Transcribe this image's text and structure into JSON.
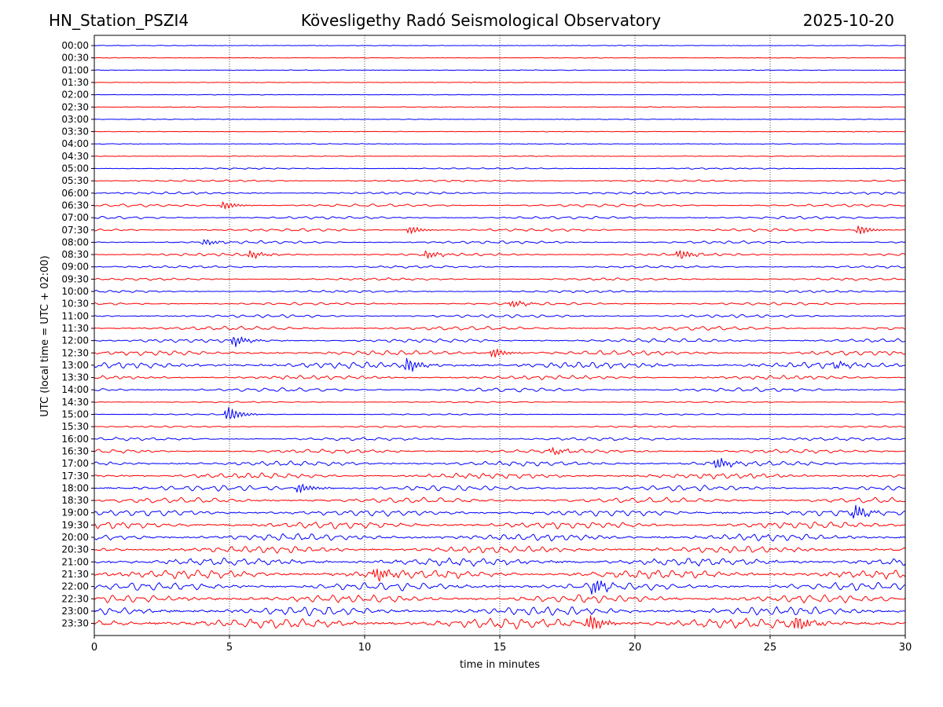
{
  "header": {
    "station": "HN_Station_PSZI4",
    "observatory": "Kövesligethy Radó Seismological Observatory",
    "date": "2025-10-20"
  },
  "chart_data": {
    "type": "line",
    "title": "Kövesligethy Radó Seismological Observatory",
    "xlabel": "time in minutes",
    "ylabel": "UTC (local time = UTC + 02:00)",
    "xlim": [
      0,
      30
    ],
    "x_ticks": [
      "0",
      "5",
      "10",
      "15",
      "20",
      "25",
      "30"
    ],
    "x_tick_values": [
      0,
      5,
      10,
      15,
      20,
      25,
      30
    ],
    "vertical_gridlines": [
      5,
      10,
      15,
      20,
      25
    ],
    "series_colors": [
      "#0000ff",
      "#ff0000"
    ],
    "row_labels": [
      "00:00",
      "00:30",
      "01:00",
      "01:30",
      "02:00",
      "02:30",
      "03:00",
      "03:30",
      "04:00",
      "04:30",
      "05:00",
      "05:30",
      "06:00",
      "06:30",
      "07:00",
      "07:30",
      "08:00",
      "08:30",
      "09:00",
      "09:30",
      "10:00",
      "10:30",
      "11:00",
      "11:30",
      "12:00",
      "12:30",
      "13:00",
      "13:30",
      "14:00",
      "14:30",
      "15:00",
      "15:30",
      "16:00",
      "16:30",
      "17:00",
      "17:30",
      "18:00",
      "18:30",
      "19:00",
      "19:30",
      "20:00",
      "20:30",
      "21:00",
      "21:30",
      "22:00",
      "22:30",
      "23:00",
      "23:30"
    ],
    "row_amplitude": [
      0.3,
      0.3,
      0.3,
      0.3,
      0.3,
      0.3,
      0.3,
      0.3,
      0.4,
      0.4,
      0.9,
      1.2,
      1.5,
      1.8,
      1.8,
      1.8,
      1.8,
      1.8,
      1.5,
      1.5,
      1.5,
      1.7,
      2.0,
      2.5,
      2.5,
      3.0,
      4.0,
      2.5,
      2.5,
      0.8,
      0.8,
      1.0,
      2.0,
      2.5,
      3.0,
      3.5,
      3.5,
      3.5,
      4.0,
      4.5,
      4.5,
      4.5,
      5.0,
      5.5,
      5.0,
      5.0,
      5.5,
      6.5
    ],
    "events": [
      {
        "row": "06:30",
        "minute": 4.8,
        "amplitude": 5
      },
      {
        "row": "07:30",
        "minute": 11.7,
        "amplitude": 5
      },
      {
        "row": "07:30",
        "minute": 28.3,
        "amplitude": 6
      },
      {
        "row": "08:00",
        "minute": 4.1,
        "amplitude": 4
      },
      {
        "row": "08:30",
        "minute": 5.8,
        "amplitude": 5
      },
      {
        "row": "08:30",
        "minute": 12.3,
        "amplitude": 5
      },
      {
        "row": "08:30",
        "minute": 21.7,
        "amplitude": 6
      },
      {
        "row": "10:30",
        "minute": 15.5,
        "amplitude": 4
      },
      {
        "row": "12:00",
        "minute": 5.2,
        "amplitude": 7
      },
      {
        "row": "12:30",
        "minute": 14.8,
        "amplitude": 6
      },
      {
        "row": "13:00",
        "minute": 11.6,
        "amplitude": 9
      },
      {
        "row": "13:00",
        "minute": 27.5,
        "amplitude": 4
      },
      {
        "row": "15:00",
        "minute": 5.0,
        "amplitude": 9
      },
      {
        "row": "16:30",
        "minute": 17.0,
        "amplitude": 4
      },
      {
        "row": "17:00",
        "minute": 23.1,
        "amplitude": 7
      },
      {
        "row": "18:00",
        "minute": 7.6,
        "amplitude": 6
      },
      {
        "row": "19:00",
        "minute": 28.2,
        "amplitude": 8
      },
      {
        "row": "21:30",
        "minute": 10.5,
        "amplitude": 8
      },
      {
        "row": "22:00",
        "minute": 18.5,
        "amplitude": 9
      },
      {
        "row": "23:30",
        "minute": 18.4,
        "amplitude": 10
      },
      {
        "row": "23:30",
        "minute": 26.0,
        "amplitude": 9
      }
    ]
  }
}
